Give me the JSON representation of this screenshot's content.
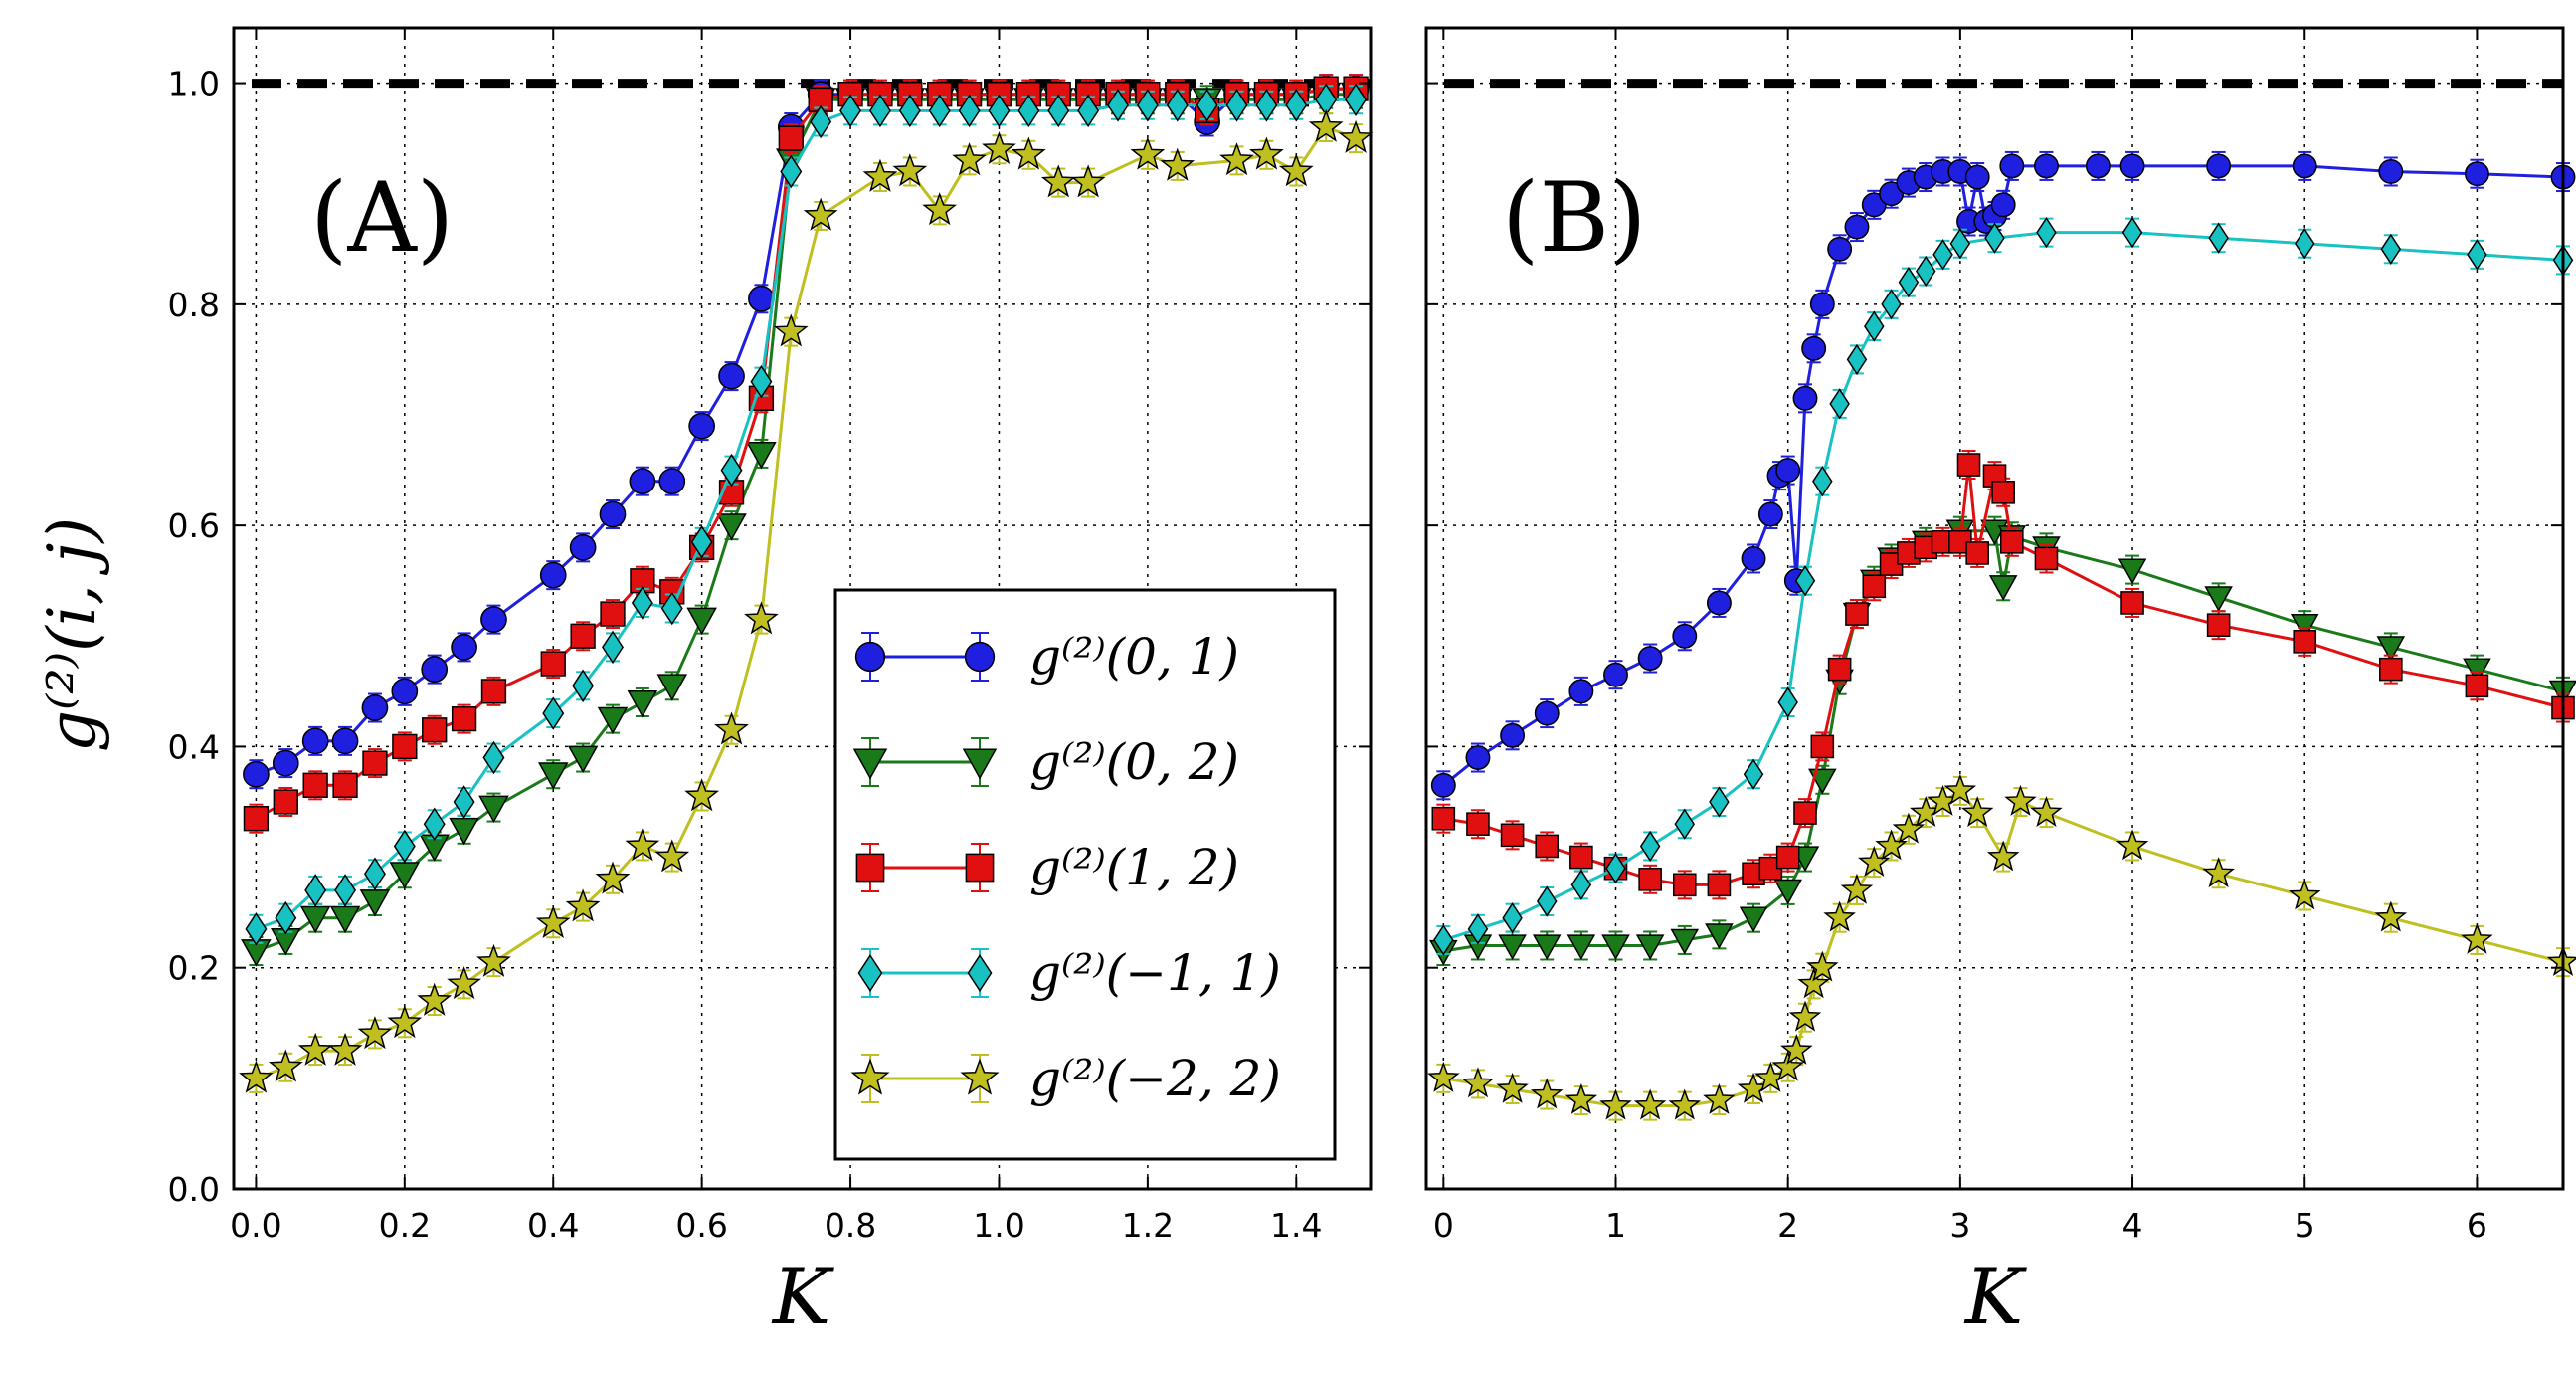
{
  "figure": {
    "ylabel": "g⁽²⁾(i, j)",
    "legend": [
      {
        "label": "g⁽²⁾(0, 1)",
        "color": "#1f1fe0",
        "marker": "circle"
      },
      {
        "label": "g⁽²⁾(0, 2)",
        "color": "#1a7a1a",
        "marker": "triangle-down"
      },
      {
        "label": "g⁽²⁾(1, 2)",
        "color": "#e01010",
        "marker": "square"
      },
      {
        "label": "g⁽²⁾(−1, 1)",
        "color": "#19c2c2",
        "marker": "diamond"
      },
      {
        "label": "g⁽²⁾(−2, 2)",
        "color": "#bfbf1f",
        "marker": "star"
      }
    ]
  },
  "chart_data": [
    {
      "type": "line",
      "panel_label": "(A)",
      "xlabel": "K",
      "ylabel": "g⁽²⁾(i, j)",
      "xlim": [
        -0.03,
        1.5
      ],
      "ylim": [
        0.0,
        1.05
      ],
      "x_ticks": [
        "0.0",
        "0.2",
        "0.4",
        "0.6",
        "0.8",
        "1.0",
        "1.2",
        "1.4"
      ],
      "y_ticks": [
        "0.0",
        "0.2",
        "0.4",
        "0.6",
        "0.8",
        "1.0"
      ],
      "grid": true,
      "legend_position": "lower-right",
      "reference_line": 1.0,
      "series": [
        {
          "name": "g⁽²⁾(0, 1)",
          "color": "#1f1fe0",
          "marker": "circle",
          "x": [
            0.0,
            0.04,
            0.08,
            0.12,
            0.16,
            0.2,
            0.24,
            0.28,
            0.32,
            0.4,
            0.44,
            0.48,
            0.52,
            0.56,
            0.6,
            0.64,
            0.68,
            0.72,
            0.76,
            0.8,
            0.84,
            0.88,
            0.92,
            0.96,
            1.0,
            1.04,
            1.08,
            1.12,
            1.16,
            1.2,
            1.24,
            1.28,
            1.32,
            1.36,
            1.4,
            1.44,
            1.48
          ],
          "y": [
            0.375,
            0.385,
            0.405,
            0.405,
            0.435,
            0.45,
            0.47,
            0.49,
            0.515,
            0.555,
            0.58,
            0.61,
            0.64,
            0.64,
            0.69,
            0.735,
            0.805,
            0.96,
            0.99,
            0.99,
            0.99,
            0.99,
            0.99,
            0.99,
            0.99,
            0.99,
            0.99,
            0.99,
            0.99,
            0.99,
            0.99,
            0.965,
            0.99,
            0.99,
            0.99,
            0.995,
            0.995
          ]
        },
        {
          "name": "g⁽²⁾(0, 2)",
          "color": "#1a7a1a",
          "marker": "triangle-down",
          "x": [
            0.0,
            0.04,
            0.08,
            0.12,
            0.16,
            0.2,
            0.24,
            0.28,
            0.32,
            0.4,
            0.44,
            0.48,
            0.52,
            0.56,
            0.6,
            0.64,
            0.68,
            0.72,
            0.76,
            0.8,
            0.84,
            0.88,
            0.92,
            0.96,
            1.0,
            1.04,
            1.08,
            1.12,
            1.16,
            1.2,
            1.24,
            1.28,
            1.32,
            1.36,
            1.4,
            1.44,
            1.48
          ],
          "y": [
            0.215,
            0.225,
            0.245,
            0.245,
            0.26,
            0.285,
            0.31,
            0.325,
            0.345,
            0.375,
            0.39,
            0.425,
            0.44,
            0.455,
            0.515,
            0.6,
            0.665,
            0.93,
            0.985,
            0.985,
            0.985,
            0.985,
            0.985,
            0.985,
            0.985,
            0.985,
            0.985,
            0.985,
            0.985,
            0.985,
            0.985,
            0.985,
            0.985,
            0.985,
            0.985,
            0.99,
            0.99
          ]
        },
        {
          "name": "g⁽²⁾(1, 2)",
          "color": "#e01010",
          "marker": "square",
          "x": [
            0.0,
            0.04,
            0.08,
            0.12,
            0.16,
            0.2,
            0.24,
            0.28,
            0.32,
            0.4,
            0.44,
            0.48,
            0.52,
            0.56,
            0.6,
            0.64,
            0.68,
            0.72,
            0.76,
            0.8,
            0.84,
            0.88,
            0.92,
            0.96,
            1.0,
            1.04,
            1.08,
            1.12,
            1.16,
            1.2,
            1.24,
            1.28,
            1.32,
            1.36,
            1.4,
            1.44,
            1.48
          ],
          "y": [
            0.335,
            0.35,
            0.365,
            0.365,
            0.385,
            0.4,
            0.415,
            0.425,
            0.45,
            0.475,
            0.5,
            0.52,
            0.55,
            0.54,
            0.58,
            0.63,
            0.715,
            0.95,
            0.985,
            0.99,
            0.99,
            0.99,
            0.99,
            0.99,
            0.99,
            0.99,
            0.99,
            0.99,
            0.99,
            0.99,
            0.99,
            0.975,
            0.99,
            0.99,
            0.99,
            0.995,
            0.995
          ]
        },
        {
          "name": "g⁽²⁾(−1, 1)",
          "color": "#19c2c2",
          "marker": "diamond",
          "x": [
            0.0,
            0.04,
            0.08,
            0.12,
            0.16,
            0.2,
            0.24,
            0.28,
            0.32,
            0.4,
            0.44,
            0.48,
            0.52,
            0.56,
            0.6,
            0.64,
            0.68,
            0.72,
            0.76,
            0.8,
            0.84,
            0.88,
            0.92,
            0.96,
            1.0,
            1.04,
            1.08,
            1.12,
            1.16,
            1.2,
            1.24,
            1.28,
            1.32,
            1.36,
            1.4,
            1.44,
            1.48
          ],
          "y": [
            0.235,
            0.245,
            0.27,
            0.27,
            0.285,
            0.31,
            0.33,
            0.35,
            0.39,
            0.43,
            0.455,
            0.49,
            0.53,
            0.525,
            0.585,
            0.65,
            0.73,
            0.92,
            0.965,
            0.975,
            0.975,
            0.975,
            0.975,
            0.975,
            0.975,
            0.975,
            0.975,
            0.975,
            0.98,
            0.98,
            0.98,
            0.98,
            0.98,
            0.98,
            0.98,
            0.985,
            0.985
          ]
        },
        {
          "name": "g⁽²⁾(−2, 2)",
          "color": "#bfbf1f",
          "marker": "star",
          "x": [
            0.0,
            0.04,
            0.08,
            0.12,
            0.16,
            0.2,
            0.24,
            0.28,
            0.32,
            0.4,
            0.44,
            0.48,
            0.52,
            0.56,
            0.6,
            0.64,
            0.68,
            0.72,
            0.76,
            0.84,
            0.88,
            0.92,
            0.96,
            1.0,
            1.04,
            1.08,
            1.12,
            1.2,
            1.24,
            1.32,
            1.36,
            1.4,
            1.44,
            1.48
          ],
          "y": [
            0.1,
            0.11,
            0.125,
            0.125,
            0.14,
            0.15,
            0.17,
            0.185,
            0.205,
            0.24,
            0.255,
            0.28,
            0.31,
            0.3,
            0.355,
            0.415,
            0.515,
            0.775,
            0.88,
            0.915,
            0.92,
            0.885,
            0.93,
            0.94,
            0.935,
            0.91,
            0.91,
            0.935,
            0.925,
            0.93,
            0.935,
            0.92,
            0.96,
            0.95
          ]
        }
      ]
    },
    {
      "type": "line",
      "panel_label": "(B)",
      "xlabel": "K",
      "xlim": [
        -0.1,
        6.5
      ],
      "ylim": [
        0.0,
        1.05
      ],
      "x_ticks": [
        "0",
        "1",
        "2",
        "3",
        "4",
        "5",
        "6"
      ],
      "grid": true,
      "reference_line": 1.0,
      "series": [
        {
          "name": "g⁽²⁾(0, 1)",
          "color": "#1f1fe0",
          "marker": "circle",
          "x": [
            0.0,
            0.2,
            0.4,
            0.6,
            0.8,
            1.0,
            1.2,
            1.4,
            1.6,
            1.8,
            1.9,
            1.95,
            2.0,
            2.05,
            2.1,
            2.15,
            2.2,
            2.3,
            2.4,
            2.5,
            2.6,
            2.7,
            2.8,
            2.9,
            3.0,
            3.05,
            3.1,
            3.15,
            3.2,
            3.25,
            3.3,
            3.5,
            3.8,
            4.0,
            4.5,
            5.0,
            5.5,
            6.0,
            6.5
          ],
          "y": [
            0.365,
            0.39,
            0.41,
            0.43,
            0.45,
            0.465,
            0.48,
            0.5,
            0.53,
            0.57,
            0.61,
            0.645,
            0.65,
            0.55,
            0.715,
            0.76,
            0.8,
            0.85,
            0.87,
            0.89,
            0.9,
            0.91,
            0.915,
            0.92,
            0.92,
            0.875,
            0.915,
            0.875,
            0.88,
            0.89,
            0.925,
            0.925,
            0.925,
            0.925,
            0.925,
            0.925,
            0.92,
            0.918,
            0.915
          ]
        },
        {
          "name": "g⁽²⁾(0, 2)",
          "color": "#1a7a1a",
          "marker": "triangle-down",
          "x": [
            0.0,
            0.2,
            0.4,
            0.6,
            0.8,
            1.0,
            1.2,
            1.4,
            1.6,
            1.8,
            2.0,
            2.1,
            2.2,
            2.3,
            2.4,
            2.5,
            2.6,
            2.8,
            3.0,
            3.2,
            3.25,
            3.3,
            3.5,
            4.0,
            4.5,
            5.0,
            5.5,
            6.0,
            6.5
          ],
          "y": [
            0.215,
            0.22,
            0.22,
            0.22,
            0.22,
            0.22,
            0.22,
            0.225,
            0.23,
            0.245,
            0.27,
            0.3,
            0.37,
            0.46,
            0.52,
            0.55,
            0.57,
            0.585,
            0.595,
            0.595,
            0.545,
            0.59,
            0.58,
            0.56,
            0.535,
            0.51,
            0.49,
            0.47,
            0.45
          ]
        },
        {
          "name": "g⁽²⁾(1, 2)",
          "color": "#e01010",
          "marker": "square",
          "x": [
            0.0,
            0.2,
            0.4,
            0.6,
            0.8,
            1.0,
            1.2,
            1.4,
            1.6,
            1.8,
            1.9,
            2.0,
            2.1,
            2.2,
            2.3,
            2.4,
            2.5,
            2.6,
            2.7,
            2.8,
            2.9,
            3.0,
            3.05,
            3.1,
            3.2,
            3.25,
            3.3,
            3.5,
            4.0,
            4.5,
            5.0,
            5.5,
            6.0,
            6.5
          ],
          "y": [
            0.335,
            0.33,
            0.32,
            0.31,
            0.3,
            0.29,
            0.28,
            0.275,
            0.275,
            0.285,
            0.29,
            0.3,
            0.34,
            0.4,
            0.47,
            0.52,
            0.545,
            0.565,
            0.575,
            0.58,
            0.585,
            0.585,
            0.655,
            0.575,
            0.645,
            0.63,
            0.585,
            0.57,
            0.53,
            0.51,
            0.495,
            0.47,
            0.455,
            0.435
          ]
        },
        {
          "name": "g⁽²⁾(−1, 1)",
          "color": "#19c2c2",
          "marker": "diamond",
          "x": [
            0.0,
            0.2,
            0.4,
            0.6,
            0.8,
            1.0,
            1.2,
            1.4,
            1.6,
            1.8,
            2.0,
            2.1,
            2.2,
            2.3,
            2.4,
            2.5,
            2.6,
            2.7,
            2.8,
            2.9,
            3.0,
            3.2,
            3.5,
            4.0,
            4.5,
            5.0,
            5.5,
            6.0,
            6.5
          ],
          "y": [
            0.225,
            0.235,
            0.245,
            0.26,
            0.275,
            0.29,
            0.31,
            0.33,
            0.35,
            0.375,
            0.44,
            0.55,
            0.64,
            0.71,
            0.75,
            0.78,
            0.8,
            0.82,
            0.83,
            0.845,
            0.855,
            0.86,
            0.865,
            0.865,
            0.86,
            0.855,
            0.85,
            0.845,
            0.84
          ]
        },
        {
          "name": "g⁽²⁾(−2, 2)",
          "color": "#bfbf1f",
          "marker": "star",
          "x": [
            0.0,
            0.2,
            0.4,
            0.6,
            0.8,
            1.0,
            1.2,
            1.4,
            1.6,
            1.8,
            1.9,
            2.0,
            2.05,
            2.1,
            2.15,
            2.2,
            2.3,
            2.4,
            2.5,
            2.6,
            2.7,
            2.8,
            2.9,
            3.0,
            3.1,
            3.25,
            3.35,
            3.5,
            4.0,
            4.5,
            5.0,
            5.5,
            6.0,
            6.5
          ],
          "y": [
            0.1,
            0.095,
            0.09,
            0.085,
            0.08,
            0.075,
            0.075,
            0.075,
            0.08,
            0.09,
            0.1,
            0.11,
            0.125,
            0.155,
            0.185,
            0.2,
            0.245,
            0.27,
            0.295,
            0.31,
            0.325,
            0.34,
            0.35,
            0.36,
            0.34,
            0.3,
            0.35,
            0.34,
            0.31,
            0.285,
            0.265,
            0.245,
            0.225,
            0.205
          ]
        }
      ]
    }
  ]
}
